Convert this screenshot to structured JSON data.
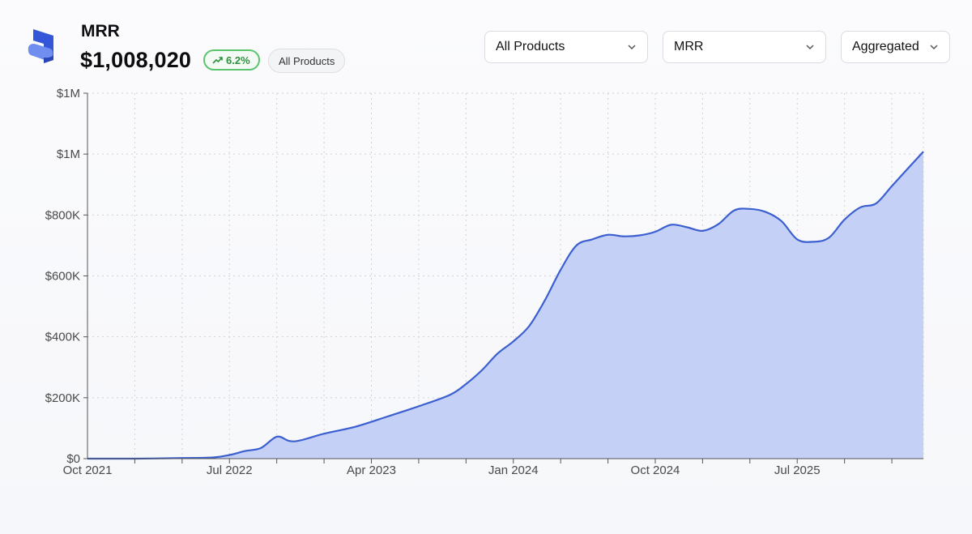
{
  "header": {
    "title": "MRR",
    "value": "$1,008,020",
    "change": "6.2%",
    "scope": "All Products"
  },
  "filters": {
    "product": "All Products",
    "metric": "MRR",
    "mode": "Aggregated"
  },
  "icons": [
    "logo-icon",
    "trend-up-icon",
    "chevron-down-icon"
  ],
  "colors": {
    "line": "#3b5fcf",
    "fill": "#c1cef5",
    "badge_border": "#5cc46e",
    "badge_text": "#2f8f3e",
    "logo_primary": "#3457d9",
    "logo_secondary": "#6f8ef0"
  },
  "chart_data": {
    "type": "area",
    "title": "MRR",
    "xlabel": "",
    "ylabel": "",
    "ylim": [
      0,
      1200000
    ],
    "grid": true,
    "y_ticks": [
      {
        "value": 0,
        "label": "$0"
      },
      {
        "value": 200000,
        "label": "$200K"
      },
      {
        "value": 400000,
        "label": "$400K"
      },
      {
        "value": 600000,
        "label": "$600K"
      },
      {
        "value": 800000,
        "label": "$800K"
      },
      {
        "value": 1000000,
        "label": "$1M"
      },
      {
        "value": 1200000,
        "label": "$1M"
      }
    ],
    "x_range": [
      0,
      53
    ],
    "x_ticks": [
      {
        "month": 0,
        "label": "Oct 2021"
      },
      {
        "month": 9,
        "label": "Jul 2022"
      },
      {
        "month": 18,
        "label": "Apr 2023"
      },
      {
        "month": 27,
        "label": "Jan 2024"
      },
      {
        "month": 36,
        "label": "Oct 2024"
      },
      {
        "month": 45,
        "label": "Jul 2025"
      }
    ],
    "x_grid_months": [
      3,
      6,
      9,
      12,
      15,
      18,
      21,
      24,
      27,
      30,
      33,
      36,
      39,
      42,
      45,
      48,
      51
    ],
    "series": [
      {
        "name": "MRR",
        "x": [
          0,
          3,
          6,
          8,
          9,
          10,
          11,
          12,
          12.8,
          13.5,
          15,
          17,
          19,
          21,
          23,
          24,
          25,
          26,
          27,
          28,
          29,
          30,
          31,
          32,
          33,
          34,
          35,
          36,
          37,
          38,
          39,
          40,
          41,
          42,
          43,
          44,
          45,
          46,
          47,
          48,
          49,
          50,
          51,
          52,
          53
        ],
        "y": [
          0,
          0,
          2000,
          4000,
          12000,
          25000,
          35000,
          72000,
          58000,
          60000,
          82000,
          105000,
          138000,
          172000,
          210000,
          245000,
          290000,
          345000,
          385000,
          435000,
          520000,
          620000,
          700000,
          720000,
          735000,
          730000,
          733000,
          745000,
          768000,
          760000,
          748000,
          770000,
          815000,
          820000,
          810000,
          780000,
          720000,
          712000,
          725000,
          785000,
          825000,
          838000,
          895000,
          952000,
          1008020
        ]
      }
    ]
  }
}
